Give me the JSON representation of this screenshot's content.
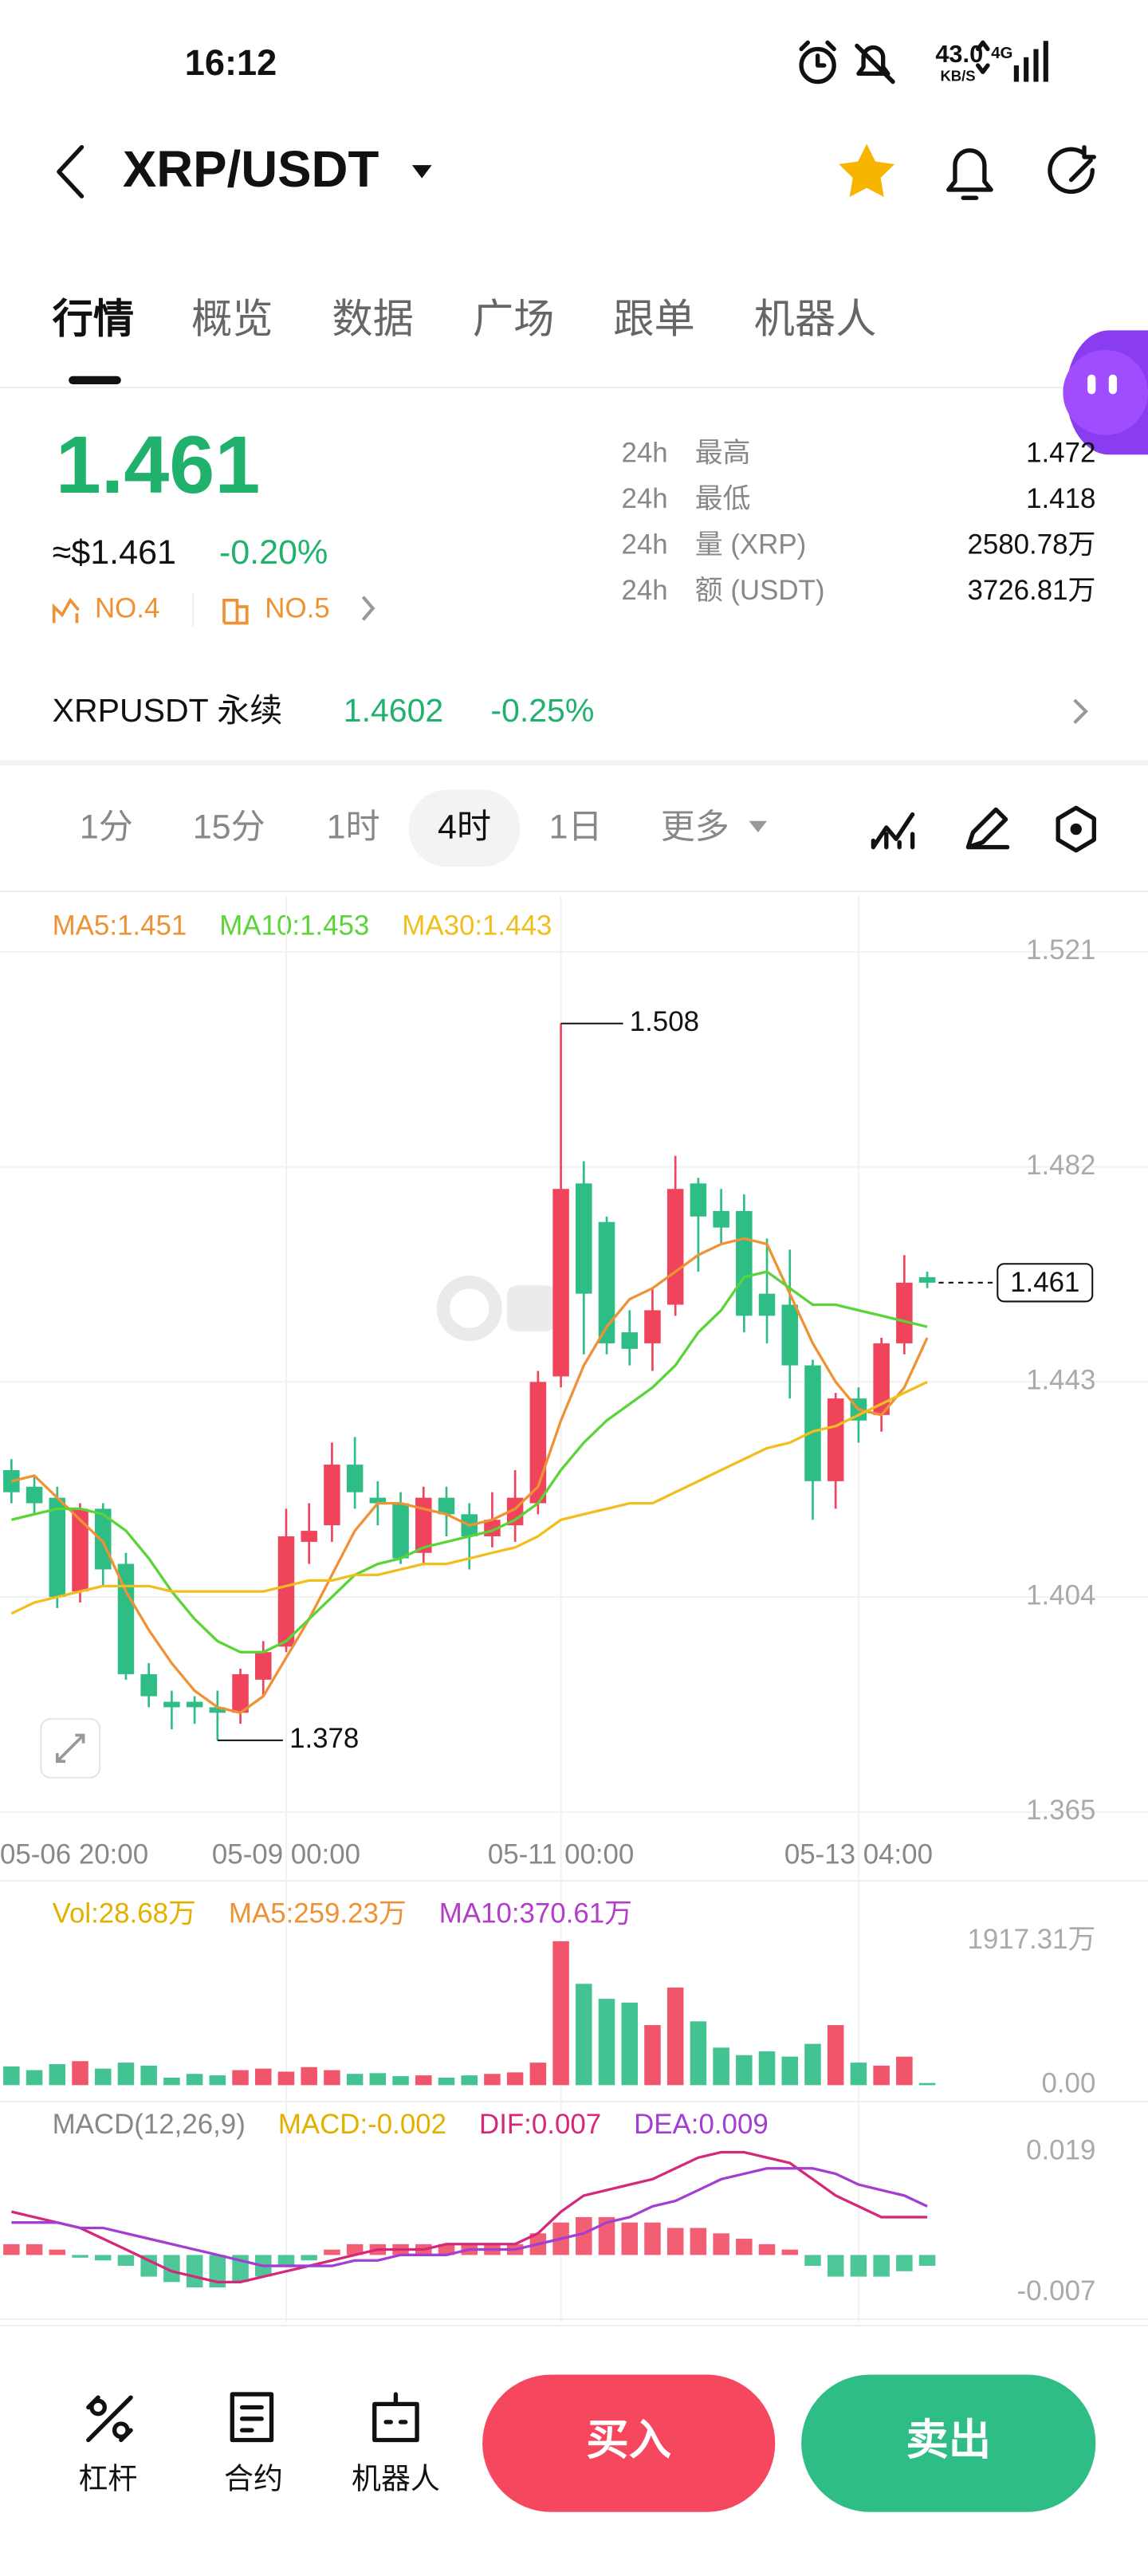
{
  "status_bar": {
    "time": "16:12",
    "speed": "43.0",
    "speed_unit": "KB/S",
    "network": "4G"
  },
  "header": {
    "title": "XRP/USDT"
  },
  "tabs": [
    "行情",
    "概览",
    "数据",
    "广场",
    "跟单",
    "机器人"
  ],
  "price": {
    "last": "1.461",
    "usd": "≈$1.461",
    "change": "-0.20%",
    "rank1": "NO.4",
    "rank2": "NO.5"
  },
  "stats": [
    {
      "period": "24h",
      "label": "最高",
      "value": "1.472"
    },
    {
      "period": "24h",
      "label": "最低",
      "value": "1.418"
    },
    {
      "period": "24h",
      "label": "量 (XRP)",
      "value": "2580.78万"
    },
    {
      "period": "24h",
      "label": "额 (USDT)",
      "value": "3726.81万"
    }
  ],
  "perpetual": {
    "name": "XRPUSDT 永续",
    "price": "1.4602",
    "change": "-0.25%"
  },
  "intervals": [
    "1分",
    "15分",
    "1时",
    "4时",
    "1日",
    "更多"
  ],
  "chart_data": {
    "type": "candlestick",
    "up_color": "#f0435c",
    "down_color": "#2ebd85",
    "grid": true,
    "ma_lines": [
      {
        "legend": "MA5:1.451",
        "color": "#ee9235",
        "values": [
          1.425,
          1.426,
          1.422,
          1.418,
          1.414,
          1.405,
          1.398,
          1.392,
          1.387,
          1.384,
          1.383,
          1.386,
          1.393,
          1.4,
          1.408,
          1.416,
          1.421,
          1.421,
          1.42,
          1.419,
          1.417,
          1.418,
          1.42,
          1.424,
          1.436,
          1.446,
          1.453,
          1.458,
          1.46,
          1.463,
          1.466,
          1.468,
          1.469,
          1.468,
          1.459,
          1.45,
          1.443,
          1.438,
          1.437,
          1.442,
          1.451
        ]
      },
      {
        "legend": "MA10:1.453",
        "color": "#5ad438",
        "values": [
          1.418,
          1.419,
          1.42,
          1.42,
          1.419,
          1.416,
          1.411,
          1.405,
          1.4,
          1.396,
          1.394,
          1.394,
          1.396,
          1.4,
          1.404,
          1.408,
          1.41,
          1.411,
          1.413,
          1.414,
          1.415,
          1.416,
          1.418,
          1.421,
          1.427,
          1.432,
          1.436,
          1.439,
          1.442,
          1.446,
          1.452,
          1.456,
          1.462,
          1.463,
          1.46,
          1.457,
          1.457,
          1.456,
          1.455,
          1.454,
          1.453
        ]
      },
      {
        "legend": "MA30:1.443",
        "color": "#f0bf1e",
        "values": [
          1.401,
          1.403,
          1.404,
          1.405,
          1.406,
          1.406,
          1.406,
          1.405,
          1.405,
          1.405,
          1.405,
          1.405,
          1.406,
          1.407,
          1.407,
          1.408,
          1.408,
          1.409,
          1.41,
          1.41,
          1.411,
          1.412,
          1.413,
          1.415,
          1.418,
          1.419,
          1.42,
          1.421,
          1.421,
          1.423,
          1.425,
          1.427,
          1.429,
          1.431,
          1.432,
          1.434,
          1.435,
          1.437,
          1.439,
          1.441,
          1.443
        ]
      }
    ],
    "open": [
      1.427,
      1.424,
      1.422,
      1.405,
      1.42,
      1.41,
      1.39,
      1.385,
      1.385,
      1.384,
      1.383,
      1.389,
      1.395,
      1.414,
      1.417,
      1.428,
      1.422,
      1.421,
      1.412,
      1.422,
      1.419,
      1.415,
      1.417,
      1.421,
      1.444,
      1.479,
      1.472,
      1.452,
      1.45,
      1.457,
      1.479,
      1.474,
      1.474,
      1.459,
      1.457,
      1.446,
      1.425,
      1.44,
      1.437,
      1.45,
      1.462
    ],
    "high": [
      1.429,
      1.426,
      1.424,
      1.421,
      1.421,
      1.412,
      1.392,
      1.387,
      1.386,
      1.387,
      1.391,
      1.396,
      1.42,
      1.421,
      1.432,
      1.433,
      1.425,
      1.423,
      1.424,
      1.424,
      1.421,
      1.423,
      1.427,
      1.445,
      1.508,
      1.483,
      1.473,
      1.456,
      1.46,
      1.484,
      1.48,
      1.478,
      1.477,
      1.469,
      1.467,
      1.447,
      1.441,
      1.442,
      1.451,
      1.466,
      1.463
    ],
    "low": [
      1.421,
      1.419,
      1.402,
      1.403,
      1.406,
      1.389,
      1.384,
      1.38,
      1.381,
      1.378,
      1.381,
      1.386,
      1.394,
      1.41,
      1.414,
      1.42,
      1.417,
      1.41,
      1.41,
      1.415,
      1.409,
      1.413,
      1.414,
      1.419,
      1.442,
      1.448,
      1.448,
      1.446,
      1.445,
      1.455,
      1.463,
      1.468,
      1.452,
      1.45,
      1.44,
      1.418,
      1.42,
      1.432,
      1.434,
      1.448,
      1.46
    ],
    "close": [
      1.423,
      1.421,
      1.404,
      1.42,
      1.409,
      1.39,
      1.386,
      1.384,
      1.384,
      1.383,
      1.39,
      1.394,
      1.415,
      1.416,
      1.428,
      1.423,
      1.421,
      1.411,
      1.422,
      1.419,
      1.415,
      1.418,
      1.422,
      1.443,
      1.478,
      1.459,
      1.45,
      1.449,
      1.456,
      1.478,
      1.473,
      1.471,
      1.455,
      1.455,
      1.446,
      1.425,
      1.44,
      1.436,
      1.45,
      1.461,
      1.461
    ],
    "high_label": 1.508,
    "low_label": 1.378,
    "last_price": 1.461,
    "ylim": [
      1.365,
      1.521
    ],
    "yticks": [
      1.521,
      1.482,
      1.443,
      1.404,
      1.365
    ],
    "xticks": [
      {
        "value": -1,
        "label": "05-06 20:00"
      },
      {
        "value": 12,
        "label": "05-09 00:00"
      },
      {
        "value": 24,
        "label": "05-11 00:00"
      },
      {
        "value": 37,
        "label": "05-13 04:00"
      }
    ],
    "volume": {
      "legend": [
        {
          "text": "Vol:28.68万",
          "color": "#e2b100"
        },
        {
          "text": "MA5:259.23万",
          "color": "#ee9235"
        },
        {
          "text": "MA10:370.61万",
          "color": "#b23dc8"
        }
      ],
      "values": [
        250,
        200,
        280,
        320,
        220,
        300,
        260,
        100,
        150,
        130,
        200,
        220,
        180,
        240,
        200,
        150,
        160,
        120,
        130,
        100,
        130,
        150,
        170,
        300,
        1917.31,
        1350,
        1150,
        1100,
        800,
        1300,
        850,
        500,
        400,
        450,
        380,
        550,
        800,
        300,
        260,
        380,
        28.68
      ],
      "ylim": [
        0,
        1917.31
      ],
      "yticks": [
        {
          "value": 1917.31,
          "label": "1917.31万"
        },
        {
          "value": 0,
          "label": "0.00"
        }
      ]
    },
    "macd": {
      "legend": [
        {
          "text": "MACD(12,26,9)",
          "color": "#888888"
        },
        {
          "text": "MACD:-0.002",
          "color": "#e2b100"
        },
        {
          "text": "DIF:0.007",
          "color": "#d6287a"
        },
        {
          "text": "DEA:0.009",
          "color": "#a33fd0"
        }
      ],
      "histogram": [
        0.002,
        0.002,
        0.001,
        -0.0005,
        -0.001,
        -0.002,
        -0.004,
        -0.005,
        -0.006,
        -0.006,
        -0.005,
        -0.004,
        -0.002,
        -0.001,
        0.001,
        0.002,
        0.002,
        0.002,
        0.002,
        0.002,
        0.002,
        0.002,
        0.002,
        0.004,
        0.006,
        0.007,
        0.007,
        0.006,
        0.006,
        0.005,
        0.005,
        0.004,
        0.003,
        0.002,
        0.001,
        -0.002,
        -0.004,
        -0.004,
        -0.004,
        -0.003,
        -0.002
      ],
      "dif": {
        "color": "#d6287a",
        "values": [
          0.008,
          0.007,
          0.006,
          0.005,
          0.003,
          0.001,
          -0.001,
          -0.003,
          -0.004,
          -0.005,
          -0.005,
          -0.004,
          -0.003,
          -0.002,
          -0.001,
          0,
          0.001,
          0.001,
          0.001,
          0.002,
          0.002,
          0.002,
          0.002,
          0.004,
          0.008,
          0.011,
          0.012,
          0.013,
          0.014,
          0.016,
          0.018,
          0.019,
          0.019,
          0.018,
          0.017,
          0.014,
          0.011,
          0.009,
          0.007,
          0.007,
          0.007
        ]
      },
      "dea": {
        "color": "#a33fd0",
        "values": [
          0.006,
          0.006,
          0.006,
          0.005,
          0.005,
          0.004,
          0.003,
          0.002,
          0.001,
          0,
          -0.001,
          -0.002,
          -0.002,
          -0.002,
          -0.002,
          -0.001,
          -0.001,
          0,
          0,
          0,
          0.001,
          0.001,
          0.001,
          0.002,
          0.003,
          0.004,
          0.006,
          0.007,
          0.009,
          0.01,
          0.012,
          0.014,
          0.015,
          0.016,
          0.016,
          0.016,
          0.015,
          0.013,
          0.012,
          0.011,
          0.009
        ]
      },
      "ylim": [
        -0.007,
        0.019
      ],
      "yticks": [
        0.019,
        -0.007
      ]
    }
  },
  "bottom_bar": {
    "tools": [
      "杠杆",
      "合约",
      "机器人"
    ],
    "buy": "买入",
    "sell": "卖出"
  }
}
